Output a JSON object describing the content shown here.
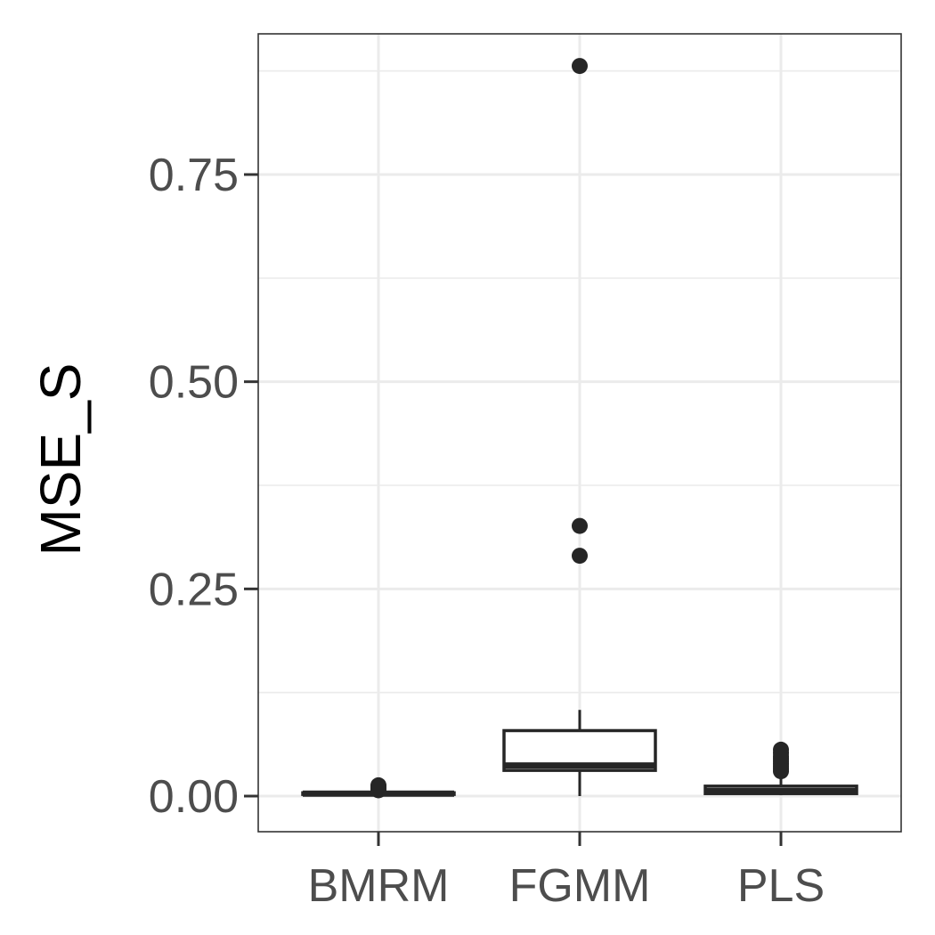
{
  "chart_data": {
    "type": "boxplot",
    "title": "",
    "xlabel": "",
    "ylabel": "MSE_S",
    "ylim": [
      -0.042,
      0.92
    ],
    "y_major_ticks": [
      0.0,
      0.25,
      0.5,
      0.75
    ],
    "y_tick_labels": [
      "0.00",
      "0.25",
      "0.50",
      "0.75"
    ],
    "y_minor_gridlines": [
      0.125,
      0.375,
      0.625,
      0.875
    ],
    "grid": true,
    "legend": "none",
    "theme": "bw",
    "categories": [
      "BMRM",
      "FGMM",
      "PLS"
    ],
    "boxes": [
      {
        "name": "BMRM",
        "whisker_low": 0.001,
        "q1": 0.002,
        "median": 0.003,
        "q3": 0.004,
        "whisker_high": 0.005,
        "outliers": [
          0.007,
          0.009,
          0.01,
          0.012,
          0.013
        ]
      },
      {
        "name": "FGMM",
        "whisker_low": 0.0,
        "q1": 0.031,
        "median": 0.037,
        "q3": 0.079,
        "whisker_high": 0.104,
        "outliers": [
          0.29,
          0.326,
          0.881
        ]
      },
      {
        "name": "PLS",
        "whisker_low": 0.001,
        "q1": 0.003,
        "median": 0.006,
        "q3": 0.012,
        "whisker_high": 0.025,
        "outliers": [
          0.03,
          0.033,
          0.036,
          0.039,
          0.042,
          0.045,
          0.048,
          0.052,
          0.056
        ]
      }
    ],
    "colors": {
      "box_stroke": "#262626",
      "box_fill": "#ffffff",
      "outlier": "#262626",
      "grid": "#ebebeb",
      "panel_border": "#333333",
      "tick_text": "#4d4d4d",
      "axis_title": "#000000"
    }
  }
}
